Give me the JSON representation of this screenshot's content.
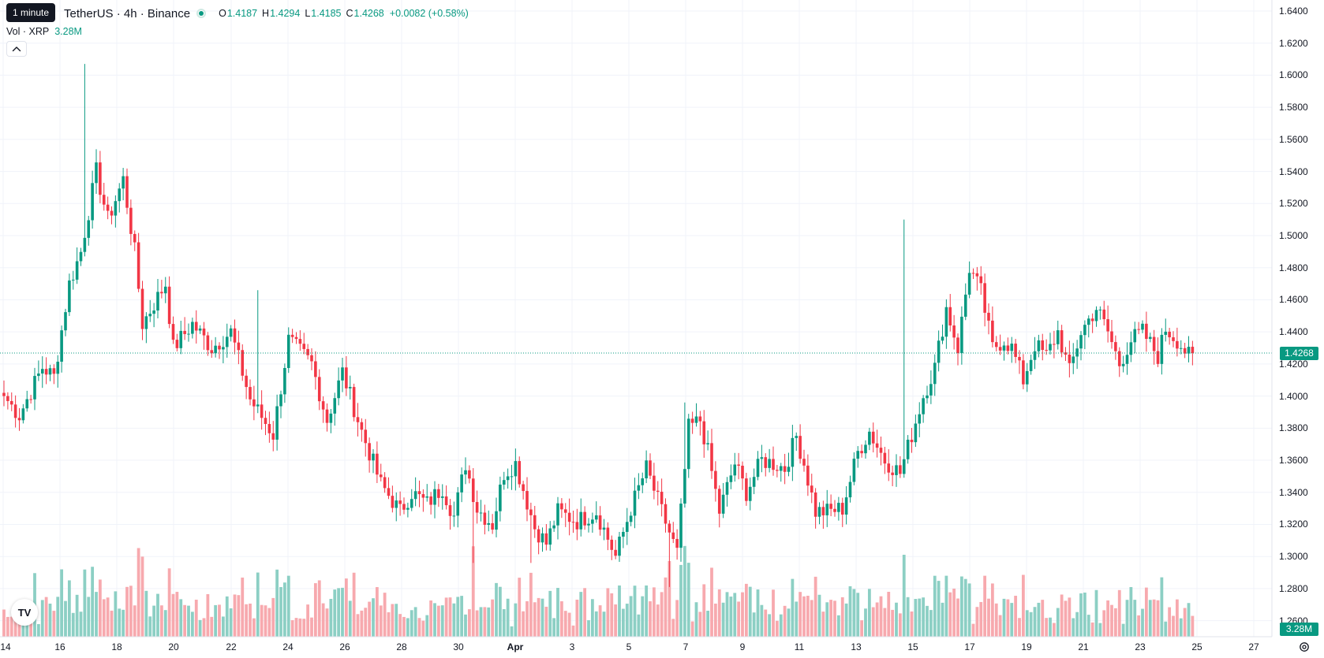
{
  "header": {
    "tooltip": "1 minute",
    "symbol": "TetherUS · 4h · Binance",
    "ohlc": [
      {
        "key": "O",
        "value": "1.4187"
      },
      {
        "key": "H",
        "value": "1.4294"
      },
      {
        "key": "L",
        "value": "1.4185"
      },
      {
        "key": "C",
        "value": "1.4268"
      }
    ],
    "change": "+0.0082 (+0.58%)"
  },
  "volume": {
    "label": "Vol · XRP",
    "value": "3.28M"
  },
  "colors": {
    "up": "#089981",
    "down": "#f23645",
    "upVol": "#8ccfc4",
    "downVol": "#f7a9ae",
    "grid": "#f0f3fa"
  },
  "icons": {
    "collapse": "chevron-up-icon",
    "logo": "tradingview-logo-icon",
    "settings": "gear-icon"
  },
  "logo_text": "TV",
  "price_axis": {
    "ticks": [
      "1.6400",
      "1.6200",
      "1.6000",
      "1.5800",
      "1.5600",
      "1.5400",
      "1.5200",
      "1.5000",
      "1.4800",
      "1.4600",
      "1.4400",
      "1.4200",
      "1.4000",
      "1.3800",
      "1.3600",
      "1.3400",
      "1.3200",
      "1.3000",
      "1.2800",
      "1.2600"
    ],
    "last_price_label": "1.4268",
    "volume_label": "3.28M"
  },
  "time_axis": {
    "labels": [
      "14",
      "16",
      "18",
      "20",
      "22",
      "24",
      "26",
      "28",
      "30",
      "Apr",
      "3",
      "5",
      "7",
      "9",
      "11",
      "13",
      "15",
      "17",
      "19",
      "21",
      "23",
      "25",
      "27"
    ]
  },
  "chart_data": {
    "type": "candlestick",
    "interval": "4h",
    "ylim": [
      1.25,
      1.64
    ],
    "last_price": 1.4268,
    "anchors": [
      [
        0,
        1.4
      ],
      [
        4,
        1.388
      ],
      [
        10,
        1.418
      ],
      [
        13,
        1.412
      ],
      [
        17,
        1.47
      ],
      [
        20,
        1.49
      ],
      [
        24,
        1.54
      ],
      [
        27,
        1.51
      ],
      [
        31,
        1.535
      ],
      [
        34,
        1.49
      ],
      [
        36,
        1.445
      ],
      [
        42,
        1.47
      ],
      [
        44,
        1.43
      ],
      [
        49,
        1.445
      ],
      [
        54,
        1.43
      ],
      [
        59,
        1.44
      ],
      [
        64,
        1.398
      ],
      [
        70,
        1.376
      ],
      [
        74,
        1.435
      ],
      [
        80,
        1.42
      ],
      [
        84,
        1.385
      ],
      [
        88,
        1.415
      ],
      [
        93,
        1.378
      ],
      [
        98,
        1.345
      ],
      [
        103,
        1.328
      ],
      [
        106,
        1.34
      ],
      [
        110,
        1.333
      ],
      [
        114,
        1.343
      ],
      [
        117,
        1.325
      ],
      [
        120,
        1.358
      ],
      [
        123,
        1.33
      ],
      [
        127,
        1.32
      ],
      [
        130,
        1.352
      ],
      [
        133,
        1.358
      ],
      [
        138,
        1.318
      ],
      [
        141,
        1.308
      ],
      [
        144,
        1.328
      ],
      [
        149,
        1.322
      ],
      [
        154,
        1.328
      ],
      [
        159,
        1.3
      ],
      [
        163,
        1.33
      ],
      [
        167,
        1.355
      ],
      [
        171,
        1.328
      ],
      [
        175,
        1.302
      ],
      [
        178,
        1.38
      ],
      [
        181,
        1.385
      ],
      [
        183,
        1.365
      ],
      [
        186,
        1.328
      ],
      [
        190,
        1.358
      ],
      [
        193,
        1.34
      ],
      [
        197,
        1.36
      ],
      [
        200,
        1.358
      ],
      [
        203,
        1.355
      ],
      [
        206,
        1.375
      ],
      [
        208,
        1.358
      ],
      [
        211,
        1.328
      ],
      [
        214,
        1.328
      ],
      [
        218,
        1.33
      ],
      [
        222,
        1.365
      ],
      [
        225,
        1.378
      ],
      [
        229,
        1.36
      ],
      [
        233,
        1.352
      ],
      [
        236,
        1.376
      ],
      [
        239,
        1.4
      ],
      [
        242,
        1.418
      ],
      [
        245,
        1.455
      ],
      [
        248,
        1.43
      ],
      [
        251,
        1.48
      ],
      [
        254,
        1.465
      ],
      [
        257,
        1.43
      ],
      [
        260,
        1.435
      ],
      [
        262,
        1.43
      ],
      [
        265,
        1.41
      ],
      [
        268,
        1.432
      ],
      [
        271,
        1.425
      ],
      [
        274,
        1.44
      ],
      [
        277,
        1.415
      ],
      [
        280,
        1.44
      ],
      [
        284,
        1.455
      ],
      [
        287,
        1.44
      ],
      [
        290,
        1.42
      ],
      [
        293,
        1.435
      ],
      [
        296,
        1.44
      ],
      [
        300,
        1.425
      ],
      [
        302,
        1.442
      ],
      [
        305,
        1.435
      ],
      [
        308,
        1.425
      ],
      [
        309,
        1.4268
      ]
    ]
  }
}
